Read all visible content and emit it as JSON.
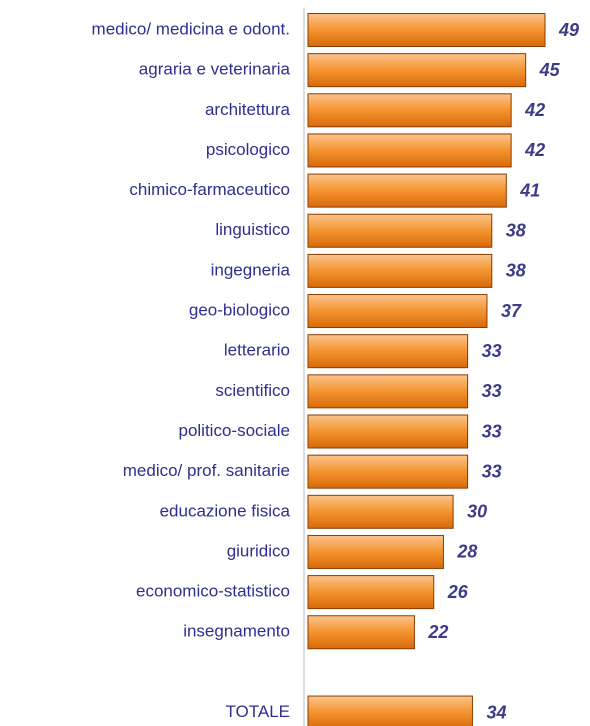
{
  "chart_data": {
    "type": "bar",
    "orientation": "horizontal",
    "categories": [
      "medico/ medicina e odont.",
      "agraria e veterinaria",
      "architettura",
      "psicologico",
      "chimico-farmaceutico",
      "linguistico",
      "ingegneria",
      "geo-biologico",
      "letterario",
      "scientifico",
      "politico-sociale",
      "medico/ prof. sanitarie",
      "educazione fisica",
      "giuridico",
      "economico-statistico",
      "insegnamento",
      null,
      "TOTALE"
    ],
    "values": [
      49,
      45,
      42,
      42,
      41,
      38,
      38,
      37,
      33,
      33,
      33,
      33,
      30,
      28,
      26,
      22,
      null,
      34
    ],
    "color": "#f07f1c"
  }
}
